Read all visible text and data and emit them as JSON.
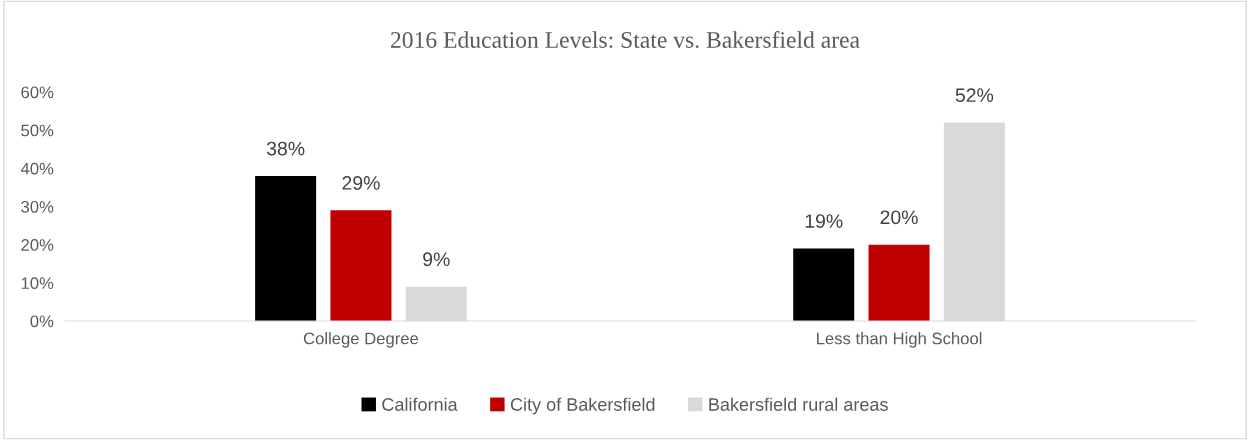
{
  "chart_data": {
    "type": "bar",
    "title": "2016 Education Levels: State vs. Bakersfield area",
    "categories": [
      "College Degree",
      "Less than High School"
    ],
    "series": [
      {
        "name": "California",
        "color": "#000000",
        "values": [
          38,
          19
        ],
        "value_labels": [
          "38%",
          "19%"
        ]
      },
      {
        "name": "City of Bakersfield",
        "color": "#c00000",
        "values": [
          29,
          20
        ],
        "value_labels": [
          "29%",
          "20%"
        ]
      },
      {
        "name": "Bakersfield rural areas",
        "color": "#d9d9d9",
        "values": [
          9,
          52
        ],
        "value_labels": [
          "9%",
          "52%"
        ]
      }
    ],
    "ylim": [
      0,
      60
    ],
    "yticks": [
      {
        "value": 0,
        "label": "0%"
      },
      {
        "value": 10,
        "label": "10%"
      },
      {
        "value": 20,
        "label": "20%"
      },
      {
        "value": 30,
        "label": "30%"
      },
      {
        "value": 40,
        "label": "40%"
      },
      {
        "value": 50,
        "label": "50%"
      },
      {
        "value": 60,
        "label": "60%"
      }
    ],
    "grid": false,
    "legend": "bottom"
  }
}
